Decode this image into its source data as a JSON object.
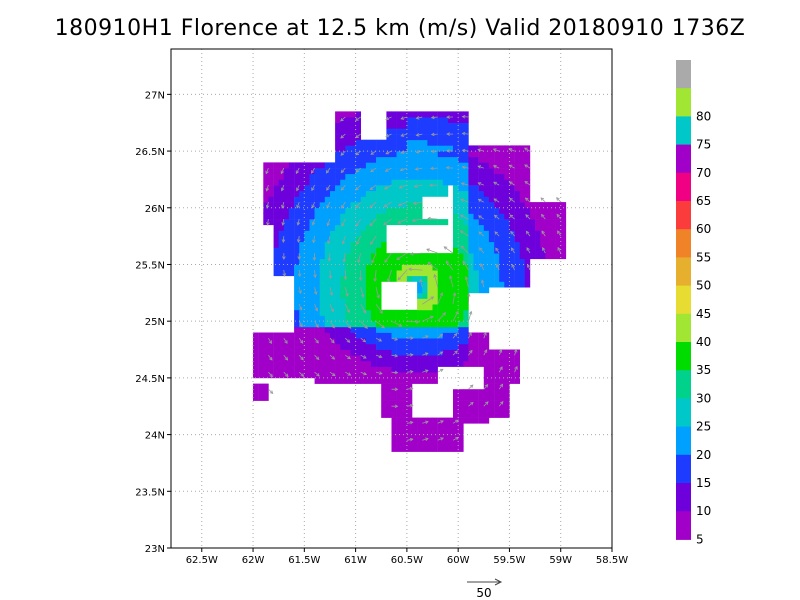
{
  "title": "180910H1 Florence at 12.5 km (m/s) Valid 20180910  1736Z",
  "map": {
    "lon_range": [
      -62.8,
      -58.5
    ],
    "lat_range": [
      23.0,
      27.4
    ],
    "x_ticks": [
      {
        "lon": -62.5,
        "label": "62.5W"
      },
      {
        "lon": -62.0,
        "label": "62W"
      },
      {
        "lon": -61.5,
        "label": "61.5W"
      },
      {
        "lon": -61.0,
        "label": "61W"
      },
      {
        "lon": -60.5,
        "label": "60.5W"
      },
      {
        "lon": -60.0,
        "label": "60W"
      },
      {
        "lon": -59.5,
        "label": "59.5W"
      },
      {
        "lon": -59.0,
        "label": "59W"
      },
      {
        "lon": -58.5,
        "label": "58.5W"
      }
    ],
    "y_ticks": [
      {
        "lat": 23.0,
        "label": "23N"
      },
      {
        "lat": 23.5,
        "label": "23.5N"
      },
      {
        "lat": 24.0,
        "label": "24N"
      },
      {
        "lat": 24.5,
        "label": "24.5N"
      },
      {
        "lat": 25.0,
        "label": "25N"
      },
      {
        "lat": 25.5,
        "label": "25.5N"
      },
      {
        "lat": 26.0,
        "label": "26N"
      },
      {
        "lat": 26.5,
        "label": "26.5N"
      },
      {
        "lat": 27.0,
        "label": "27N"
      }
    ],
    "grid": "dotted",
    "center": {
      "lon": -60.4,
      "lat": 25.3
    },
    "coverage": [
      {
        "lon": [
          -61.2,
          -59.9
        ],
        "lat": [
          26.2,
          26.85
        ]
      },
      {
        "lon": [
          -61.9,
          -60.1
        ],
        "lat": [
          25.85,
          26.4
        ]
      },
      {
        "lon": [
          -61.8,
          -60.7
        ],
        "lat": [
          25.4,
          26.0
        ]
      },
      {
        "lon": [
          -61.6,
          -59.7
        ],
        "lat": [
          24.6,
          25.6
        ]
      },
      {
        "lon": [
          -60.05,
          -59.3
        ],
        "lat": [
          25.3,
          26.55
        ]
      },
      {
        "lon": [
          -59.4,
          -58.95
        ],
        "lat": [
          25.55,
          26.05
        ]
      },
      {
        "lon": [
          -62.0,
          -61.1
        ],
        "lat": [
          24.5,
          24.9
        ]
      },
      {
        "lon": [
          -61.4,
          -60.2
        ],
        "lat": [
          24.45,
          24.7
        ]
      },
      {
        "lon": [
          -60.75,
          -60.45
        ],
        "lat": [
          24.15,
          24.45
        ]
      },
      {
        "lon": [
          -60.65,
          -59.95
        ],
        "lat": [
          23.85,
          24.15
        ]
      },
      {
        "lon": [
          -60.05,
          -59.7
        ],
        "lat": [
          24.1,
          24.4
        ]
      },
      {
        "lon": [
          -59.75,
          -59.5
        ],
        "lat": [
          24.15,
          24.6
        ]
      },
      {
        "lon": [
          -59.75,
          -59.4
        ],
        "lat": [
          24.45,
          24.75
        ]
      },
      {
        "lon": [
          -62.0,
          -61.85
        ],
        "lat": [
          24.3,
          24.45
        ]
      }
    ],
    "holes": [
      {
        "lon": [
          -60.75,
          -60.4
        ],
        "lat": [
          25.1,
          25.35
        ]
      },
      {
        "lon": [
          -60.35,
          -60.1
        ],
        "lat": [
          25.9,
          26.1
        ]
      },
      {
        "lon": [
          -60.95,
          -60.7
        ],
        "lat": [
          26.6,
          26.85
        ]
      },
      {
        "lon": [
          -59.9,
          -59.7
        ],
        "lat": [
          24.9,
          25.25
        ]
      }
    ]
  },
  "colorbar": {
    "levels": [
      {
        "label": "",
        "color": "#aaaaaa"
      },
      {
        "label": "80",
        "color": "#a0e632"
      },
      {
        "label": "75",
        "color": "#00c8c8"
      },
      {
        "label": "70",
        "color": "#a000c8"
      },
      {
        "label": "65",
        "color": "#f00082"
      },
      {
        "label": "60",
        "color": "#fa3c3c"
      },
      {
        "label": "55",
        "color": "#f08228"
      },
      {
        "label": "50",
        "color": "#e6af2d"
      },
      {
        "label": "45",
        "color": "#e6dc32"
      },
      {
        "label": "40",
        "color": "#a0e632"
      },
      {
        "label": "35",
        "color": "#00dc00"
      },
      {
        "label": "30",
        "color": "#00d28c"
      },
      {
        "label": "25",
        "color": "#00c8c8"
      },
      {
        "label": "20",
        "color": "#00a0ff"
      },
      {
        "label": "15",
        "color": "#1e3cff"
      },
      {
        "label": "10",
        "color": "#6e00dc"
      },
      {
        "label": "5",
        "color": "#a000c8"
      }
    ]
  },
  "reference_vector": {
    "label": "50"
  }
}
